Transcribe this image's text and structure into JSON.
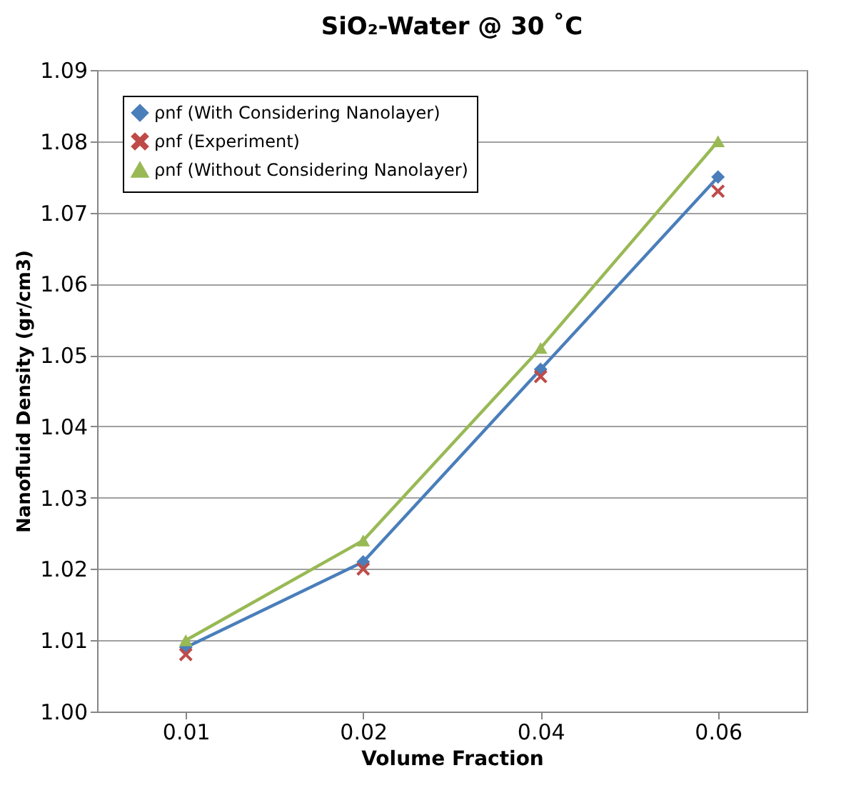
{
  "chart_data": {
    "type": "line",
    "title": "SiO₂-Water @ 30 ˚C",
    "xlabel": "Volume Fraction",
    "ylabel": "Nanofluid Density (gr/cm3)",
    "categories": [
      "0.01",
      "0.02",
      "0.04",
      "0.06"
    ],
    "series": [
      {
        "name": "ρnf (With Considering Nanolayer)",
        "type": "line",
        "marker": "diamond",
        "color": "#4a7ebb",
        "values": [
          1.009,
          1.021,
          1.048,
          1.075
        ]
      },
      {
        "name": "ρnf (Experiment)",
        "type": "scatter",
        "marker": "cross",
        "color": "#be4b48",
        "values": [
          1.008,
          1.02,
          1.047,
          1.073
        ]
      },
      {
        "name": "ρnf (Without Considering Nanolayer)",
        "type": "line",
        "marker": "triangle",
        "color": "#98b954",
        "values": [
          1.01,
          1.024,
          1.051,
          1.08
        ]
      }
    ],
    "ylim": [
      1.0,
      1.09
    ],
    "yticks": [
      {
        "value": 1.0,
        "label": "1.00"
      },
      1.01,
      1.02,
      1.03,
      1.04,
      1.05,
      1.06,
      1.07,
      1.08,
      1.09
    ],
    "grid": "y",
    "legend": "top left"
  }
}
